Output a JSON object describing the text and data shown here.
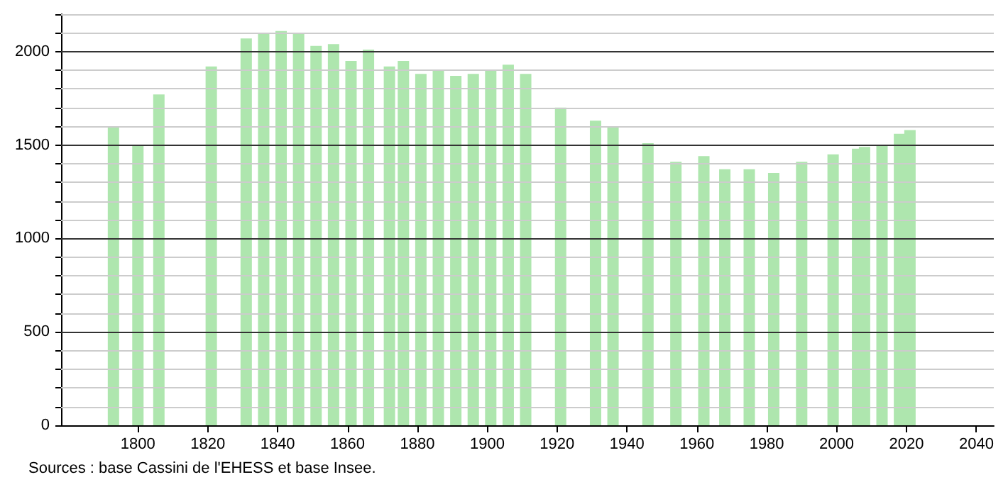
{
  "chart_data": {
    "type": "bar",
    "color": "#aee6ae",
    "x": [
      1793,
      1800,
      1806,
      1821,
      1831,
      1836,
      1841,
      1846,
      1851,
      1856,
      1861,
      1866,
      1872,
      1876,
      1881,
      1886,
      1891,
      1896,
      1901,
      1906,
      1911,
      1921,
      1931,
      1936,
      1946,
      1954,
      1962,
      1968,
      1975,
      1982,
      1990,
      1999,
      2006,
      2008,
      2013,
      2018,
      2021
    ],
    "values": [
      1600,
      1500,
      1770,
      1920,
      2070,
      2100,
      2110,
      2100,
      2030,
      2040,
      1950,
      2010,
      1920,
      1950,
      1880,
      1900,
      1870,
      1880,
      1900,
      1930,
      1880,
      1700,
      1630,
      1600,
      1510,
      1410,
      1440,
      1370,
      1370,
      1350,
      1410,
      1450,
      1480,
      1490,
      1500,
      1560,
      1580
    ],
    "xlim": [
      1778,
      2045
    ],
    "xticks": [
      1800,
      1820,
      1840,
      1860,
      1880,
      1900,
      1920,
      1940,
      1960,
      1980,
      2000,
      2020,
      2040
    ],
    "ylim": [
      0,
      2200
    ],
    "yticks": [
      0,
      {
        "value": 100,
        "label": null
      },
      {
        "value": 200,
        "label": null
      },
      {
        "value": 300,
        "label": null
      },
      {
        "value": 400,
        "label": null
      },
      500,
      {
        "value": 600,
        "label": null
      },
      {
        "value": 700,
        "label": null
      },
      {
        "value": 800,
        "label": null
      },
      {
        "value": 900,
        "label": null
      },
      1000,
      {
        "value": 1100,
        "label": null
      },
      {
        "value": 1200,
        "label": null
      },
      {
        "value": 1300,
        "label": null
      },
      {
        "value": 1400,
        "label": null
      },
      1500,
      {
        "value": 1600,
        "label": null
      },
      {
        "value": 1700,
        "label": null
      },
      {
        "value": 1800,
        "label": null
      },
      {
        "value": 1900,
        "label": null
      },
      2000,
      {
        "value": 2100,
        "label": null
      },
      {
        "value": 2200,
        "label": null
      }
    ],
    "grid": "y",
    "annotations": [
      "Sources : base Cassini de l'EHESS et base Insee."
    ]
  }
}
